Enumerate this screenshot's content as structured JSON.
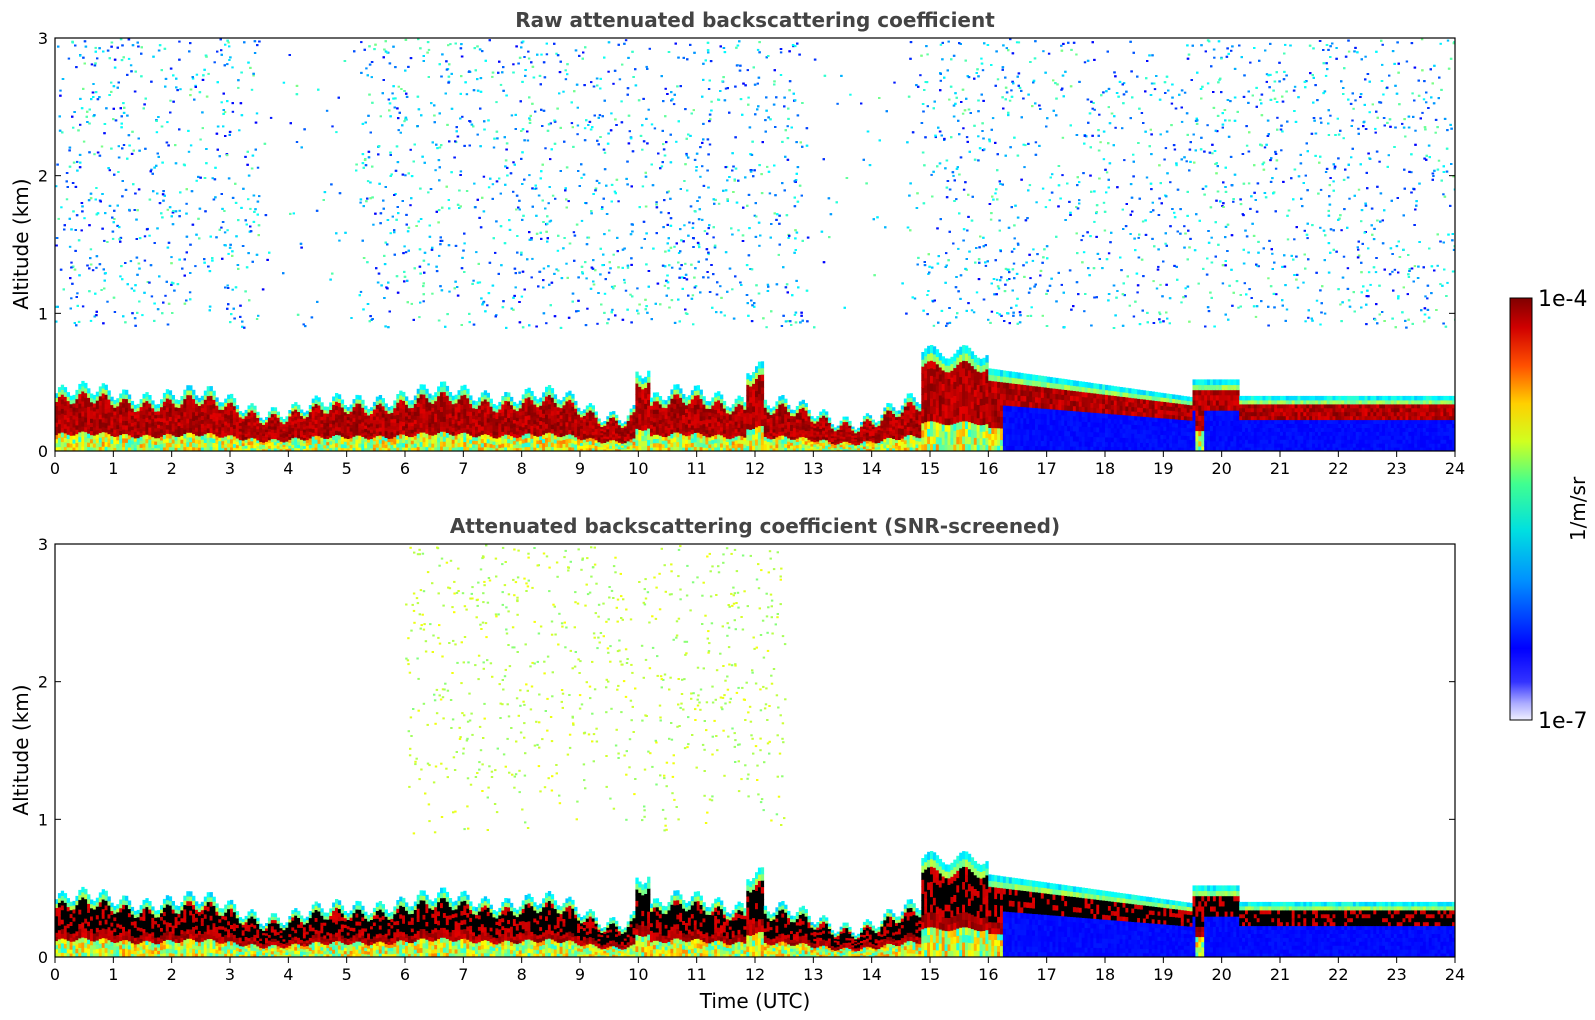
{
  "chart_data": [
    {
      "type": "heatmap",
      "title": "Raw attenuated backscattering coefficient",
      "xlabel": "",
      "ylabel": "Altitude (km)",
      "xlim": [
        0,
        24
      ],
      "ylim": [
        0,
        3
      ],
      "xticks": [
        "0",
        "1",
        "2",
        "3",
        "4",
        "5",
        "6",
        "7",
        "8",
        "9",
        "10",
        "11",
        "12",
        "13",
        "14",
        "15",
        "16",
        "17",
        "18",
        "19",
        "20",
        "21",
        "22",
        "23",
        "24"
      ],
      "yticks": [
        "0",
        "1",
        "2",
        "3"
      ],
      "screened": false
    },
    {
      "type": "heatmap",
      "title": "Attenuated backscattering coefficient (SNR-screened)",
      "xlabel": "Time (UTC)",
      "ylabel": "Altitude (km)",
      "xlim": [
        0,
        24
      ],
      "ylim": [
        0,
        3
      ],
      "xticks": [
        "0",
        "1",
        "2",
        "3",
        "4",
        "5",
        "6",
        "7",
        "8",
        "9",
        "10",
        "11",
        "12",
        "13",
        "14",
        "15",
        "16",
        "17",
        "18",
        "19",
        "20",
        "21",
        "22",
        "23",
        "24"
      ],
      "yticks": [
        "0",
        "1",
        "2",
        "3"
      ],
      "screened": true
    }
  ],
  "colorbar": {
    "label": "1/m/sr",
    "max_label": "1e-4",
    "min_label": "1e-7",
    "colormap": "jet",
    "scale": "log"
  },
  "colors": {
    "title": "#444444",
    "axis": "#000000",
    "background": "#ffffff"
  }
}
